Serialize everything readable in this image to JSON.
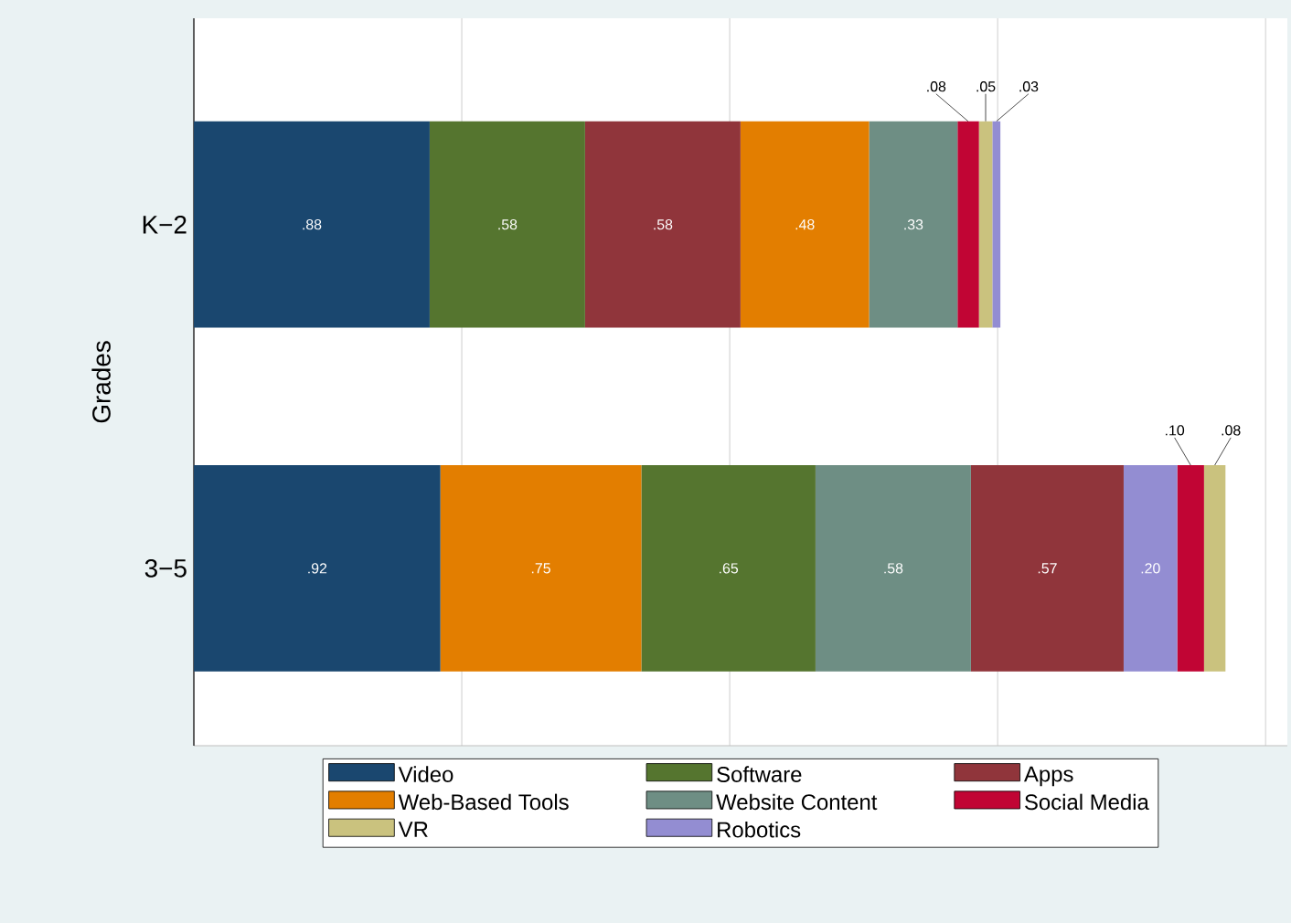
{
  "chart_data": {
    "type": "bar",
    "orientation": "horizontal",
    "stacked": true,
    "ylabel": "Grades",
    "categories": [
      "K−2",
      "3−5"
    ],
    "tick_labels": "y",
    "grid": "x",
    "legend": "bottom",
    "series": [
      {
        "name": "Video",
        "color": "#1a476f",
        "values": [
          0.88,
          null
        ],
        "value_labels": [
          ".88",
          null
        ]
      },
      {
        "name": "Software",
        "color": "#55752f",
        "values": [
          0.58,
          null
        ],
        "value_labels": [
          ".58",
          null
        ]
      },
      {
        "name": "Apps",
        "color": "#90353b",
        "values": [
          0.58,
          null
        ],
        "value_labels": [
          ".58",
          null
        ]
      },
      {
        "name": "Web-Based Tools",
        "color": "#e37e00",
        "values": [
          0.48,
          null
        ],
        "value_labels": [
          ".48",
          null
        ]
      },
      {
        "name": "Website Content",
        "color": "#6e8e84",
        "values": [
          0.33,
          null
        ],
        "value_labels": [
          ".33",
          null
        ]
      },
      {
        "name": "Social Media",
        "color": "#c10534",
        "values": [
          0.08,
          null
        ],
        "value_labels": [
          ".08",
          null
        ]
      },
      {
        "name": "VR",
        "color": "#cac27e",
        "values": [
          0.05,
          null
        ],
        "value_labels": [
          ".05",
          null
        ]
      },
      {
        "name": "Robotics",
        "color": "#938dd2",
        "values": [
          0.03,
          null
        ],
        "value_labels": [
          ".03",
          null
        ]
      },
      {
        "color": "#1a476f",
        "values": [
          null,
          0.92
        ],
        "value_labels": [
          null,
          ".92"
        ]
      },
      {
        "color": "#e37e00",
        "values": [
          null,
          0.75
        ],
        "value_labels": [
          null,
          ".75"
        ]
      },
      {
        "color": "#55752f",
        "values": [
          null,
          0.65
        ],
        "value_labels": [
          null,
          ".65"
        ]
      },
      {
        "color": "#6e8e84",
        "values": [
          null,
          0.58
        ],
        "value_labels": [
          null,
          ".58"
        ]
      },
      {
        "color": "#90353b",
        "values": [
          null,
          0.57
        ],
        "value_labels": [
          null,
          ".57"
        ]
      },
      {
        "color": "#938dd2",
        "values": [
          null,
          0.2
        ],
        "value_labels": [
          null,
          ".20"
        ]
      },
      {
        "color": "#c10534",
        "values": [
          null,
          0.1
        ],
        "value_labels": [
          null,
          ".10"
        ]
      },
      {
        "color": "#cac27e",
        "values": [
          null,
          0.08
        ],
        "value_labels": [
          null,
          ".08"
        ]
      }
    ]
  }
}
